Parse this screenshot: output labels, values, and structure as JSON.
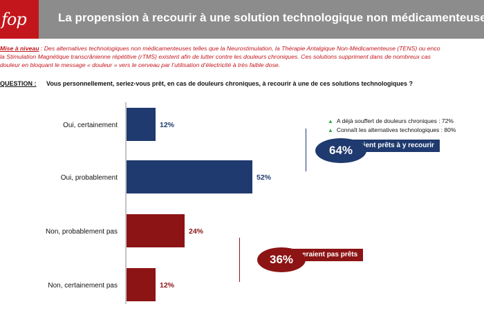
{
  "header": {
    "logo": "fop",
    "title": "La propension à recourir à une solution technologique non médicamenteuse"
  },
  "intro": {
    "label": "Mise à niveau",
    "line1": "Des alternatives technologiques non médicamenteuses telles que la Neurostimulation, la Thérapie Antalgique Non-Médicamenteuse (TENS) ou enco",
    "line2": "la Stimulation Magnétique transcrânienne répétitive (rTMS) existent afin de lutter contre les douleurs chroniques. Ces solutions suppriment dans de nombreux cas",
    "line3": "douleur en bloquant le message « douleur » vers le cerveau par l’utilisation d’électricité à très faible dose."
  },
  "question": {
    "label": "QUESTION :",
    "text": "Vous personnellement, seriez-vous prêt, en cas de douleurs chroniques, à recourir à une de ces solutions technologiques ?"
  },
  "chart_data": {
    "type": "bar",
    "orientation": "horizontal",
    "categories": [
      "Oui, certainement",
      "Oui, probablement",
      "Non, probablement pas",
      "Non, certainement pas"
    ],
    "values": [
      12,
      52,
      24,
      12
    ],
    "value_labels": [
      "12%",
      "52%",
      "24%",
      "12%"
    ],
    "colors": [
      "#1f3a6e",
      "#1f3a6e",
      "#8c1414",
      "#8c1414"
    ],
    "xlim": [
      0,
      100
    ],
    "grid": false,
    "title": "",
    "xlabel": "",
    "ylabel": ""
  },
  "notes": [
    "A déjà souffert de douleurs chroniques : 72%",
    "Connaît les alternatives technologiques : 80%"
  ],
  "callouts": {
    "yes": {
      "value": "64%",
      "label": "Seraient prêts à y recourir",
      "color": "#1f3a6e"
    },
    "no": {
      "value": "36%",
      "label": "Ne seraient pas prêts",
      "color": "#8c1414"
    }
  }
}
